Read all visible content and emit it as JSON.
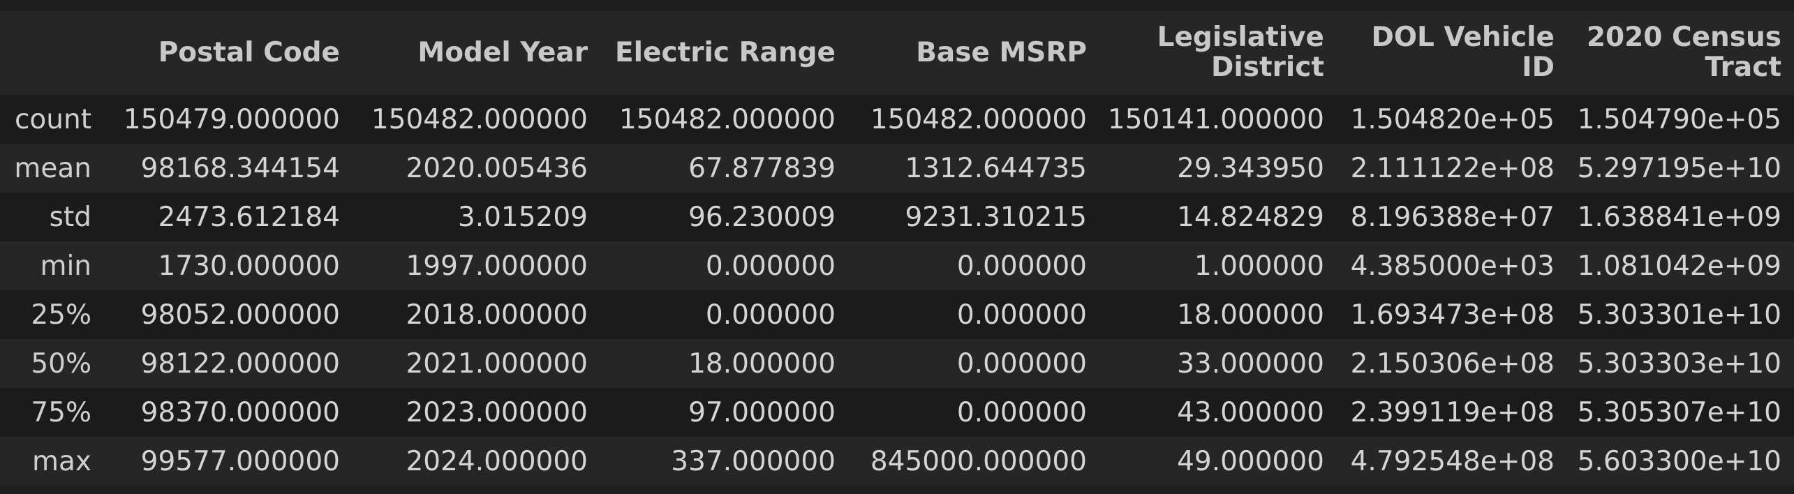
{
  "columns": [
    "Postal Code",
    "Model Year",
    "Electric Range",
    "Base MSRP",
    "Legislative District",
    "DOL Vehicle ID",
    "2020 Census Tract"
  ],
  "rows": [
    {
      "label": "count",
      "values": [
        "150479.000000",
        "150482.000000",
        "150482.000000",
        "150482.000000",
        "150141.000000",
        "1.504820e+05",
        "1.504790e+05"
      ]
    },
    {
      "label": "mean",
      "values": [
        "98168.344154",
        "2020.005436",
        "67.877839",
        "1312.644735",
        "29.343950",
        "2.111122e+08",
        "5.297195e+10"
      ]
    },
    {
      "label": "std",
      "values": [
        "2473.612184",
        "3.015209",
        "96.230009",
        "9231.310215",
        "14.824829",
        "8.196388e+07",
        "1.638841e+09"
      ]
    },
    {
      "label": "min",
      "values": [
        "1730.000000",
        "1997.000000",
        "0.000000",
        "0.000000",
        "1.000000",
        "4.385000e+03",
        "1.081042e+09"
      ]
    },
    {
      "label": "25%",
      "values": [
        "98052.000000",
        "2018.000000",
        "0.000000",
        "0.000000",
        "18.000000",
        "1.693473e+08",
        "5.303301e+10"
      ]
    },
    {
      "label": "50%",
      "values": [
        "98122.000000",
        "2021.000000",
        "18.000000",
        "0.000000",
        "33.000000",
        "2.150306e+08",
        "5.303303e+10"
      ]
    },
    {
      "label": "75%",
      "values": [
        "98370.000000",
        "2023.000000",
        "97.000000",
        "0.000000",
        "43.000000",
        "2.399119e+08",
        "5.305307e+10"
      ]
    },
    {
      "label": "max",
      "values": [
        "99577.000000",
        "2024.000000",
        "337.000000",
        "845000.000000",
        "49.000000",
        "4.792548e+08",
        "5.603300e+10"
      ]
    }
  ]
}
